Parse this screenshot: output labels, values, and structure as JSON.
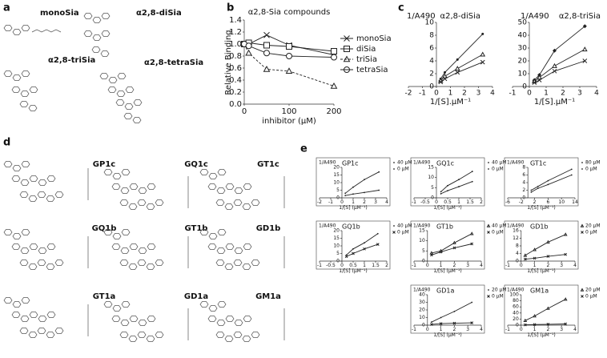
{
  "panel_labels": [
    "a",
    "b",
    "c",
    "d",
    "e"
  ],
  "structures_a": [
    "monoSia",
    "α2,8-diSia",
    "α2,8-triSia",
    "α2,8-tetraSia"
  ],
  "structures_d": [
    "GP1c",
    "GQ1c",
    "GT1c",
    "GQ1b",
    "GT1b",
    "GD1b",
    "GT1a",
    "GD1a",
    "GM1a"
  ],
  "chart_data": [
    {
      "type": "line",
      "title": "α2,8-Sia compounds",
      "y_label": "Relative Binding",
      "x_label": "inhibitor (μM)",
      "x": [
        0,
        10,
        50,
        100,
        200
      ],
      "xlim": [
        0,
        200
      ],
      "xticks": [
        0,
        100,
        200
      ],
      "ylim": [
        0,
        1.4
      ],
      "yticks": [
        {
          "value": 0,
          "label": "0.0"
        },
        0.2,
        0.4,
        0.6,
        0.8,
        {
          "value": 1,
          "label": "1.0"
        },
        1.2,
        1.4
      ],
      "legend": "right",
      "series": [
        {
          "name": "monoSia",
          "color": "#222",
          "marker": "x",
          "values": [
            1.0,
            1.0,
            1.15,
            0.98,
            0.82
          ]
        },
        {
          "name": "diSia",
          "color": "#222",
          "marker": "square",
          "values": [
            1.0,
            1.02,
            0.98,
            0.96,
            0.88
          ]
        },
        {
          "name": "triSia",
          "color": "#222",
          "marker": "triangle",
          "dash": true,
          "values": [
            1.0,
            0.85,
            0.58,
            0.55,
            0.3
          ]
        },
        {
          "name": "tetraSia",
          "color": "#222",
          "marker": "circle",
          "values": [
            1.0,
            0.97,
            0.85,
            0.8,
            0.78
          ]
        }
      ]
    },
    {
      "type": "line",
      "title": "α2,8-diSia",
      "y_label": "1/A490",
      "x_label": "1/[S].μM⁻¹",
      "x": [
        0.3,
        0.6,
        1.5,
        3.3
      ],
      "xlim": [
        -2,
        4
      ],
      "xticks": [
        -2,
        -1,
        0,
        1,
        2,
        3,
        4
      ],
      "ylim": [
        0,
        10
      ],
      "yticks": [
        0,
        2,
        4,
        6,
        8,
        10
      ],
      "series": [
        {
          "color": "#222",
          "marker": "dot",
          "values": [
            1.2,
            2.2,
            4.2,
            8.2
          ]
        },
        {
          "color": "#222",
          "marker": "triangle",
          "values": [
            0.9,
            1.6,
            2.8,
            5.0
          ]
        },
        {
          "color": "#222",
          "marker": "x",
          "values": [
            0.7,
            1.2,
            2.2,
            3.8
          ]
        }
      ]
    },
    {
      "type": "line",
      "title": "α2,8-triSia",
      "y_label": "1/A490",
      "x_label": "1/[S].μM⁻¹",
      "x": [
        0.3,
        0.6,
        1.5,
        3.3
      ],
      "xlim": [
        -1,
        4
      ],
      "xticks": [
        -1,
        0,
        1,
        2,
        3,
        4
      ],
      "ylim": [
        0,
        50
      ],
      "yticks": [
        0,
        10,
        20,
        30,
        40,
        50
      ],
      "series": [
        {
          "color": "#222",
          "marker": "diamond",
          "values": [
            5,
            9,
            28,
            47
          ]
        },
        {
          "color": "#222",
          "marker": "triangle",
          "values": [
            4,
            7,
            16,
            29
          ]
        },
        {
          "color": "#222",
          "marker": "x",
          "values": [
            3,
            5,
            12,
            20
          ]
        }
      ]
    },
    {
      "type": "line",
      "title": "GP1c",
      "y_label": "1/A490",
      "x_label": "1/[S] (μM⁻¹)",
      "x": [
        0.3,
        1,
        2,
        3.3
      ],
      "xlim": [
        -2,
        4
      ],
      "xticks": [
        -2,
        -1,
        0,
        1,
        2,
        3,
        4
      ],
      "ylim": [
        0,
        20
      ],
      "yticks": [
        0,
        5,
        10,
        15,
        20
      ],
      "legend": "right",
      "series": [
        {
          "name": "40 μM",
          "color": "#222",
          "marker": "dot",
          "values": [
            3,
            7,
            12,
            17
          ]
        },
        {
          "name": "0 μM",
          "color": "#222",
          "marker": "dot",
          "values": [
            1.5,
            2.5,
            3.5,
            5
          ]
        }
      ]
    },
    {
      "type": "line",
      "title": "GQ1c",
      "y_label": "1/A490",
      "x_label": "1/[S] (μM⁻¹)",
      "x": [
        0.2,
        0.5,
        1,
        1.6
      ],
      "xlim": [
        -1,
        2
      ],
      "xticks": [
        -1,
        -0.5,
        0,
        0.5,
        1,
        1.5,
        2
      ],
      "ylim": [
        0,
        15
      ],
      "yticks": [
        0,
        5,
        10,
        15
      ],
      "legend": "right",
      "series": [
        {
          "name": "40 μM",
          "color": "#222",
          "marker": "dot",
          "values": [
            3,
            6,
            9,
            13
          ]
        },
        {
          "name": "0 μM",
          "color": "#222",
          "marker": "dot",
          "values": [
            2,
            3.5,
            5.5,
            8
          ]
        }
      ]
    },
    {
      "type": "line",
      "title": "GT1c",
      "y_label": "1/A490",
      "x_label": "1/[S] (μM⁻¹)",
      "x": [
        1,
        3,
        6,
        13
      ],
      "xlim": [
        -6,
        14
      ],
      "xticks": [
        -6,
        -2,
        2,
        6,
        10,
        14
      ],
      "ylim": [
        0,
        8
      ],
      "yticks": [
        0,
        2,
        4,
        6,
        8
      ],
      "legend": "right",
      "series": [
        {
          "name": "80 μM",
          "color": "#222",
          "marker": "dot",
          "values": [
            2,
            3,
            4.5,
            7.5
          ]
        },
        {
          "name": "0 μM",
          "color": "#222",
          "marker": "dot",
          "values": [
            1.5,
            2.5,
            3.5,
            6
          ]
        }
      ]
    },
    {
      "type": "line",
      "title": "GQ1b",
      "y_label": "1/A490",
      "x_label": "1/[S] (μM⁻¹)",
      "x": [
        0.2,
        0.5,
        1,
        1.6
      ],
      "xlim": [
        -1,
        2
      ],
      "xticks": [
        -1,
        -0.5,
        0,
        0.5,
        1,
        1.5,
        2
      ],
      "ylim": [
        0,
        20
      ],
      "yticks": [
        0,
        5,
        10,
        15,
        20
      ],
      "legend": "right",
      "series": [
        {
          "name": "40 μM",
          "color": "#222",
          "marker": "dot",
          "values": [
            4,
            8,
            12,
            18
          ]
        },
        {
          "name": "0 μM",
          "color": "#222",
          "marker": "x",
          "values": [
            3,
            5,
            8,
            11
          ]
        }
      ]
    },
    {
      "type": "line",
      "title": "GT1b",
      "y_label": "1/A490",
      "x_label": "1/[S] (μM⁻¹)",
      "x": [
        0.3,
        1,
        2,
        3.3
      ],
      "xlim": [
        -1,
        4
      ],
      "xticks": [
        -1,
        0,
        1,
        2,
        3,
        4
      ],
      "ylim": [
        0,
        15
      ],
      "yticks": [
        0,
        5,
        10,
        15
      ],
      "legend": "right",
      "series": [
        {
          "name": "40 μM",
          "color": "#222",
          "marker": "triangle",
          "values": [
            4,
            5,
            9,
            13.5
          ]
        },
        {
          "name": "0 μM",
          "color": "#222",
          "marker": "x",
          "values": [
            3,
            4.5,
            6.5,
            8.5
          ]
        }
      ]
    },
    {
      "type": "line",
      "title": "GD1b",
      "y_label": "1/A490",
      "x_label": "1/[S] (μM⁻¹)",
      "x": [
        0.3,
        1,
        2,
        3.3
      ],
      "xlim": [
        -1,
        4
      ],
      "xticks": [
        -1,
        0,
        1,
        2,
        3,
        4
      ],
      "ylim": [
        0,
        16
      ],
      "yticks": [
        0,
        4,
        8,
        12,
        16
      ],
      "legend": "right",
      "series": [
        {
          "name": "20 μM",
          "color": "#222",
          "marker": "triangle",
          "values": [
            3,
            6,
            10,
            14
          ]
        },
        {
          "name": "0 μM",
          "color": "#222",
          "marker": "x",
          "values": [
            1,
            1.5,
            2.5,
            3.5
          ]
        }
      ]
    },
    {
      "type": "line",
      "title": "GD1a",
      "y_label": "1/A490",
      "x_label": "1/[S] (μM⁻¹)",
      "x": [
        0.3,
        1,
        2,
        3.3
      ],
      "xlim": [
        -1,
        4
      ],
      "xticks": [
        -1,
        0,
        1,
        2,
        3,
        4
      ],
      "ylim": [
        0,
        40
      ],
      "yticks": [
        0,
        10,
        20,
        30,
        40
      ],
      "legend": "right",
      "series": [
        {
          "name": "20 μM",
          "color": "#222",
          "marker": "dot",
          "values": [
            4,
            10,
            18,
            30
          ]
        },
        {
          "name": "0 μM",
          "color": "#222",
          "marker": "x",
          "values": [
            1,
            2,
            2.5,
            3
          ]
        }
      ]
    },
    {
      "type": "line",
      "title": "GM1a",
      "y_label": "1/A490",
      "x_label": "1/[S] (μM⁻¹)",
      "x": [
        0.3,
        1,
        2,
        3.3
      ],
      "xlim": [
        -1,
        4
      ],
      "xticks": [
        -1,
        0,
        1,
        2,
        3,
        4
      ],
      "ylim": [
        0,
        100
      ],
      "yticks": [
        0,
        20,
        40,
        60,
        80,
        100
      ],
      "legend": "right",
      "series": [
        {
          "name": "20 μM",
          "color": "#222",
          "marker": "triangle",
          "values": [
            15,
            30,
            55,
            85
          ]
        },
        {
          "name": "0 μM",
          "color": "#222",
          "marker": "x",
          "values": [
            1,
            2,
            3,
            4
          ]
        }
      ]
    }
  ]
}
